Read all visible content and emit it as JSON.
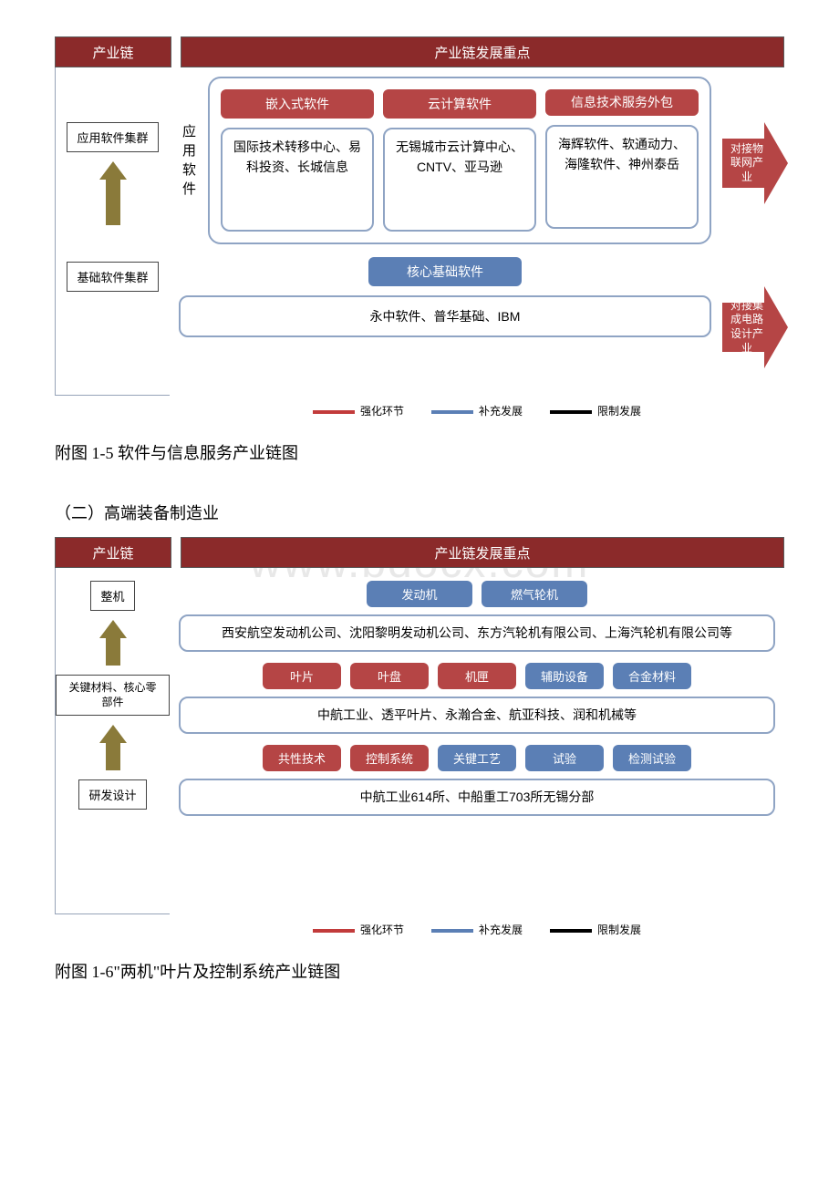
{
  "colors": {
    "header_bg": "#8b2a2a",
    "tag_red": "#b54545",
    "tag_blue": "#5b7fb5",
    "box_border": "#8fa4c4",
    "arrow_olive": "#8a7a3a",
    "legend_red": "#c23b3b",
    "legend_blue": "#5b7fb5",
    "legend_black": "#000000"
  },
  "watermark": "www.bdocx.com",
  "legend": {
    "strengthen": "强化环节",
    "supplement": "补充发展",
    "restrict": "限制发展"
  },
  "diagram1": {
    "header_left": "产业链",
    "header_right": "产业链发展重点",
    "left_box_top": "应用软件集群",
    "left_box_bottom": "基础软件集群",
    "vert_label": "应用软件",
    "top_tags": [
      "嵌入式软件",
      "云计算软件",
      "信息技术服务外包"
    ],
    "top_descs": [
      "国际技术转移中心、易科投资、长城信息",
      "无锡城市云计算中心、CNTV、亚马逊",
      "海辉软件、软通动力、海隆软件、神州泰岳"
    ],
    "bottom_tag": "核心基础软件",
    "bottom_desc": "永中软件、普华基础、IBM",
    "arrow1": "对接物联网产业",
    "arrow2": "对接集成电路设计产业",
    "caption": "附图 1-5 软件与信息服务产业链图"
  },
  "section2_title": "（二）高端装备制造业",
  "diagram2": {
    "header_left": "产业链",
    "header_right": "产业链发展重点",
    "left_boxes": [
      "整机",
      "关键材料、核心零部件",
      "研发设计"
    ],
    "row1_tags": [
      "发动机",
      "燃气轮机"
    ],
    "row1_desc": "西安航空发动机公司、沈阳黎明发动机公司、东方汽轮机有限公司、上海汽轮机有限公司等",
    "row2_tags": [
      "叶片",
      "叶盘",
      "机匣",
      "辅助设备",
      "合金材料"
    ],
    "row2_tag_colors": [
      "red",
      "red",
      "red",
      "blue",
      "blue"
    ],
    "row2_desc": "中航工业、透平叶片、永瀚合金、航亚科技、润和机械等",
    "row3_tags": [
      "共性技术",
      "控制系统",
      "关键工艺",
      "试验",
      "检测试验"
    ],
    "row3_tag_colors": [
      "red",
      "red",
      "blue",
      "blue",
      "blue"
    ],
    "row3_desc": "中航工业614所、中船重工703所无锡分部",
    "caption": "附图 1-6\"两机\"叶片及控制系统产业链图"
  }
}
